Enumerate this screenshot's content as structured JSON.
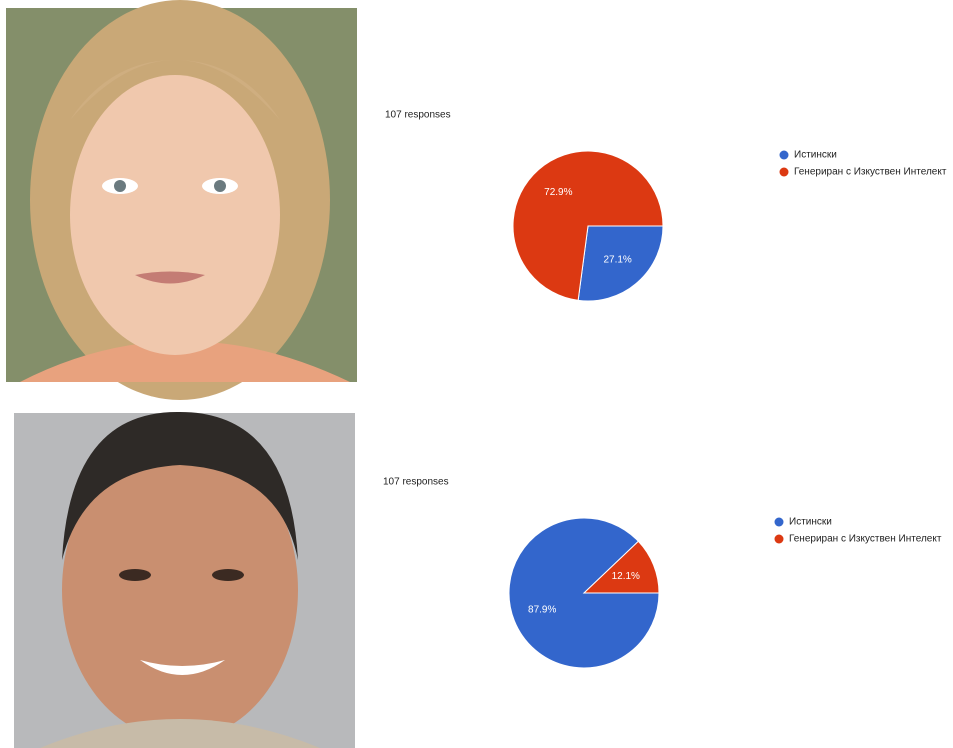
{
  "chart_data": [
    {
      "type": "pie",
      "subtitle": "107 responses",
      "categories": [
        "Истински",
        "Генериран с Изкуствен Интелект"
      ],
      "values": [
        27.1,
        72.9
      ],
      "value_labels": [
        "27.1%",
        "72.9%"
      ],
      "colors": [
        "#3366cc",
        "#dc3912"
      ],
      "legend": "right"
    },
    {
      "type": "pie",
      "subtitle": "107 responses",
      "categories": [
        "Истински",
        "Генериран с Изкуствен Интелект"
      ],
      "values": [
        87.9,
        12.1
      ],
      "value_labels": [
        "87.9%",
        "12.1%"
      ],
      "colors": [
        "#3366cc",
        "#dc3912"
      ],
      "legend": "right"
    }
  ]
}
